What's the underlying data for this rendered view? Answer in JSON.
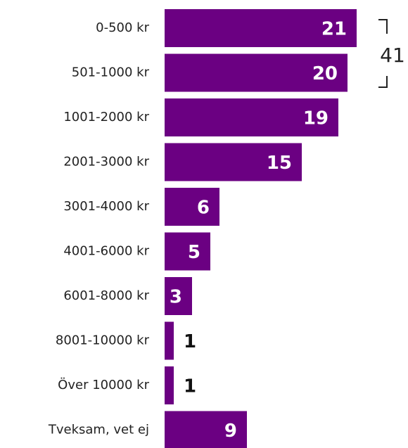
{
  "chart_data": {
    "type": "bar",
    "orientation": "horizontal",
    "categories": [
      "0-500 kr",
      "501-1000 kr",
      "1001-2000 kr",
      "2001-3000 kr",
      "3001-4000 kr",
      "4001-6000 kr",
      "6001-8000 kr",
      "8001-10000 kr",
      "Över 10000 kr",
      "Tveksam, vet ej"
    ],
    "values": [
      21,
      20,
      19,
      15,
      6,
      5,
      3,
      1,
      1,
      9
    ],
    "color": "#6b0082",
    "annotations": [
      {
        "text": "41"
      }
    ]
  }
}
